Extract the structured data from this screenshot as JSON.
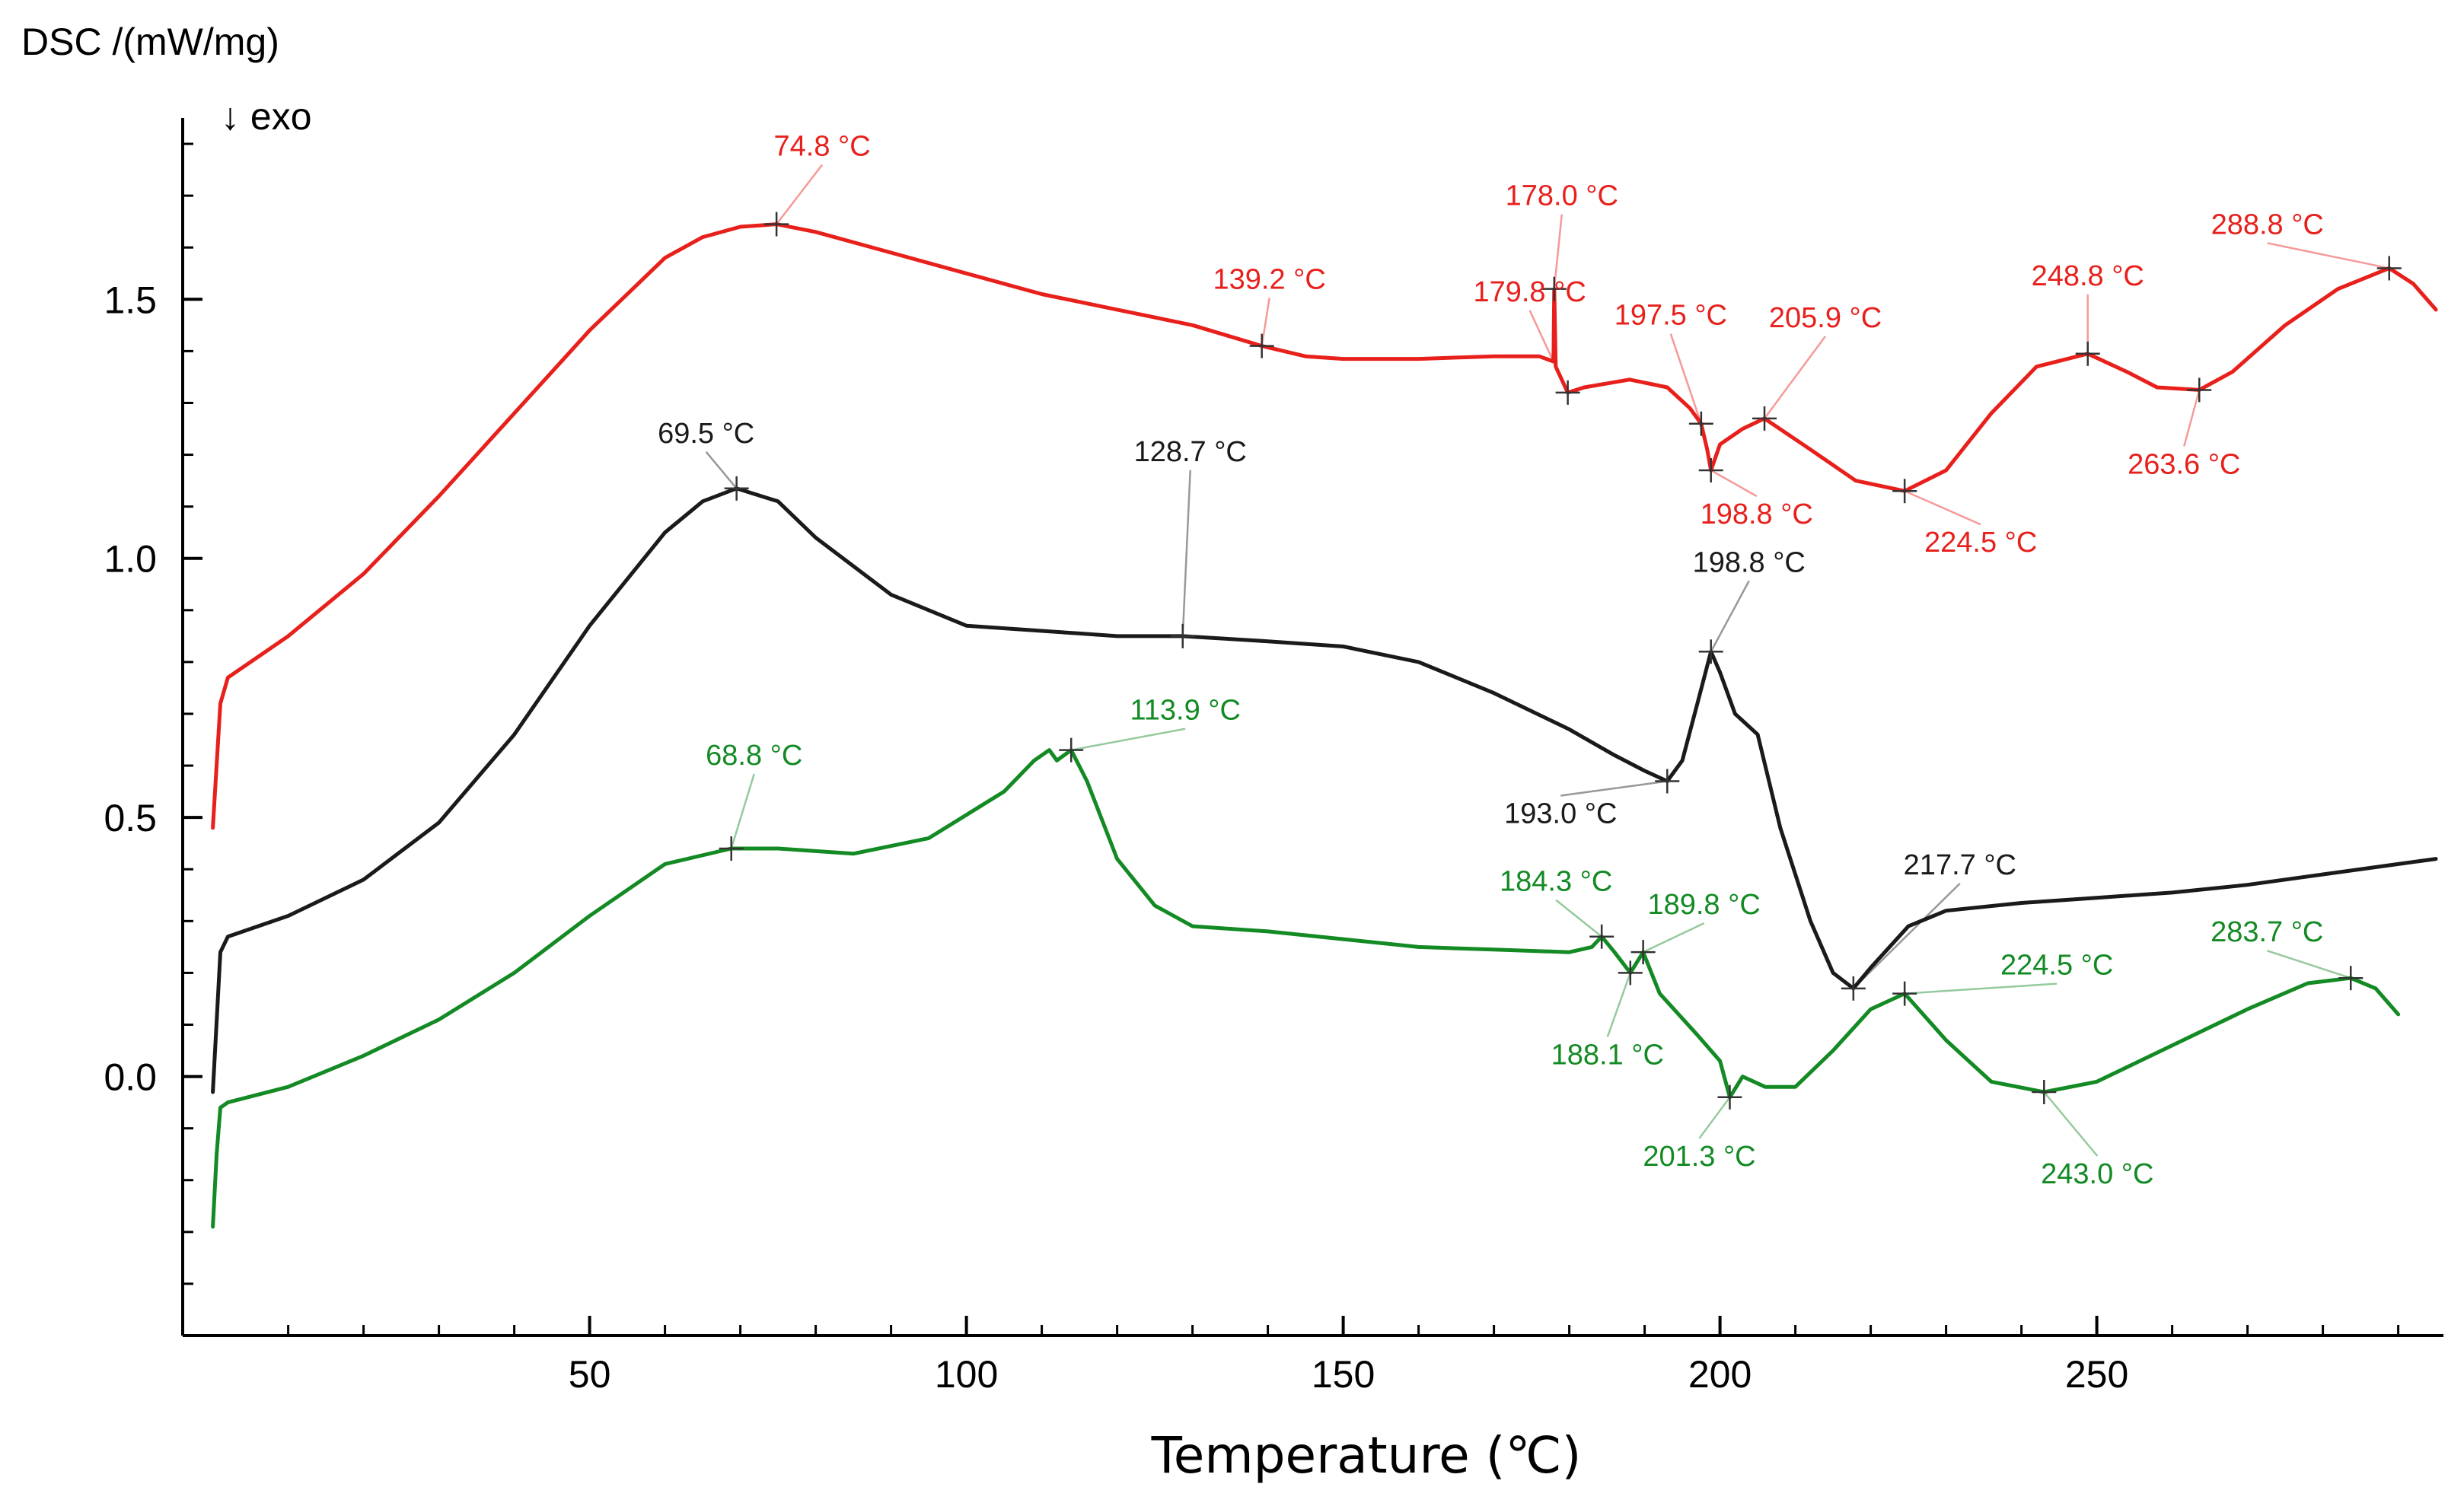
{
  "chart_data": {
    "type": "line",
    "title": "",
    "xlabel": "Temperature (℃)",
    "ylabel": "DSC /(mW/mg)",
    "y_note": "↓ exo",
    "xlim": [
      -4,
      296
    ],
    "ylim": [
      -0.5,
      1.85
    ],
    "x_ticks": [
      50,
      100,
      150,
      200,
      250
    ],
    "x_tick_labels": [
      "50",
      "100",
      "150",
      "200",
      "250"
    ],
    "y_ticks": [
      0.0,
      0.5,
      1.0,
      1.5
    ],
    "y_tick_labels": [
      "0.0",
      "0.5",
      "1.0",
      "1.5"
    ],
    "grid": false,
    "legend": "none",
    "series": [
      {
        "color": "#e8201c",
        "x": [
          0,
          1,
          2,
          10,
          20,
          30,
          40,
          50,
          60,
          65,
          70,
          74.8,
          80,
          90,
          100,
          110,
          120,
          130,
          139.2,
          145,
          150,
          160,
          170,
          176,
          177.9,
          178.0,
          178.2,
          179.8,
          182,
          188,
          193,
          196,
          197.5,
          198.3,
          198.8,
          200,
          203,
          205.9,
          212,
          218,
          224.5,
          230,
          236,
          242,
          248.8,
          254,
          258,
          263.6,
          268,
          275,
          282,
          288.8,
          292,
          295
        ],
        "y": [
          0.48,
          0.72,
          0.77,
          0.85,
          0.97,
          1.12,
          1.28,
          1.44,
          1.58,
          1.62,
          1.64,
          1.645,
          1.63,
          1.59,
          1.55,
          1.51,
          1.48,
          1.45,
          1.41,
          1.39,
          1.385,
          1.385,
          1.39,
          1.39,
          1.38,
          1.52,
          1.37,
          1.32,
          1.33,
          1.345,
          1.33,
          1.29,
          1.26,
          1.21,
          1.17,
          1.22,
          1.25,
          1.27,
          1.21,
          1.15,
          1.13,
          1.17,
          1.28,
          1.37,
          1.395,
          1.36,
          1.33,
          1.325,
          1.36,
          1.45,
          1.52,
          1.56,
          1.53,
          1.48
        ]
      },
      {
        "color": "#1a1a1a",
        "x": [
          0,
          1,
          2,
          10,
          20,
          30,
          40,
          50,
          60,
          65,
          69.5,
          75,
          80,
          90,
          100,
          110,
          115,
          120,
          128.7,
          140,
          150,
          160,
          170,
          180,
          186,
          190,
          193.0,
          195,
          197,
          198.8,
          200,
          202,
          205,
          208,
          212,
          215,
          217.7,
          220,
          225,
          230,
          240,
          250,
          260,
          270,
          280,
          290,
          295
        ],
        "y": [
          -0.03,
          0.24,
          0.27,
          0.31,
          0.38,
          0.49,
          0.66,
          0.87,
          1.05,
          1.11,
          1.135,
          1.11,
          1.04,
          0.93,
          0.87,
          0.86,
          0.855,
          0.85,
          0.85,
          0.84,
          0.83,
          0.8,
          0.74,
          0.67,
          0.62,
          0.59,
          0.57,
          0.61,
          0.72,
          0.82,
          0.78,
          0.7,
          0.66,
          0.48,
          0.3,
          0.2,
          0.17,
          0.21,
          0.29,
          0.32,
          0.335,
          0.345,
          0.355,
          0.37,
          0.39,
          0.41,
          0.42
        ]
      },
      {
        "color": "#138a24",
        "x": [
          0,
          0.5,
          1,
          2,
          10,
          20,
          30,
          40,
          50,
          60,
          68.8,
          75,
          85,
          95,
          105,
          109,
          111,
          112,
          113.9,
          116,
          120,
          125,
          130,
          140,
          150,
          160,
          170,
          180,
          183,
          184.3,
          186,
          188.1,
          189.8,
          192,
          197,
          200,
          201.3,
          203,
          206,
          210,
          215,
          220,
          224.5,
          230,
          236,
          243.0,
          250,
          260,
          270,
          278,
          283.7,
          287,
          290
        ],
        "y": [
          -0.29,
          -0.15,
          -0.06,
          -0.05,
          -0.02,
          0.04,
          0.11,
          0.2,
          0.31,
          0.41,
          0.44,
          0.44,
          0.43,
          0.46,
          0.55,
          0.61,
          0.63,
          0.61,
          0.63,
          0.57,
          0.42,
          0.33,
          0.29,
          0.28,
          0.265,
          0.25,
          0.245,
          0.24,
          0.25,
          0.27,
          0.24,
          0.2,
          0.24,
          0.16,
          0.08,
          0.03,
          -0.04,
          0.0,
          -0.02,
          -0.02,
          0.05,
          0.13,
          0.16,
          0.07,
          -0.01,
          -0.03,
          -0.01,
          0.06,
          0.13,
          0.18,
          0.19,
          0.17,
          0.12
        ]
      }
    ],
    "annotations": [
      {
        "text": "74.8 °C",
        "x": 74.8,
        "y": 1.645,
        "color": "#e8201c"
      },
      {
        "text": "139.2 °C",
        "x": 139.2,
        "y": 1.41,
        "color": "#e8201c"
      },
      {
        "text": "178.0 °C",
        "x": 178.0,
        "y": 1.52,
        "color": "#e8201c"
      },
      {
        "text": "179.8 °C",
        "x": 179.8,
        "y": 1.32,
        "color": "#e8201c"
      },
      {
        "text": "197.5 °C",
        "x": 197.5,
        "y": 1.26,
        "color": "#e8201c"
      },
      {
        "text": "205.9 °C",
        "x": 205.9,
        "y": 1.27,
        "color": "#e8201c"
      },
      {
        "text": "198.8 °C",
        "x": 198.8,
        "y": 1.17,
        "color": "#e8201c"
      },
      {
        "text": "224.5 °C",
        "x": 224.5,
        "y": 1.13,
        "color": "#e8201c"
      },
      {
        "text": "248.8 °C",
        "x": 248.8,
        "y": 1.395,
        "color": "#e8201c"
      },
      {
        "text": "263.6 °C",
        "x": 263.6,
        "y": 1.325,
        "color": "#e8201c"
      },
      {
        "text": "288.8 °C",
        "x": 288.8,
        "y": 1.56,
        "color": "#e8201c"
      },
      {
        "text": "69.5 °C",
        "x": 69.5,
        "y": 1.135,
        "color": "#1a1a1a"
      },
      {
        "text": "128.7 °C",
        "x": 128.7,
        "y": 0.85,
        "color": "#1a1a1a"
      },
      {
        "text": "198.8 °C",
        "x": 198.8,
        "y": 0.82,
        "color": "#1a1a1a"
      },
      {
        "text": "193.0 °C",
        "x": 193.0,
        "y": 0.57,
        "color": "#1a1a1a"
      },
      {
        "text": "217.7 °C",
        "x": 217.7,
        "y": 0.17,
        "color": "#1a1a1a"
      },
      {
        "text": "68.8 °C",
        "x": 68.8,
        "y": 0.44,
        "color": "#138a24"
      },
      {
        "text": "113.9 °C",
        "x": 113.9,
        "y": 0.63,
        "color": "#138a24"
      },
      {
        "text": "184.3 °C",
        "x": 184.3,
        "y": 0.27,
        "color": "#138a24"
      },
      {
        "text": "189.8 °C",
        "x": 189.8,
        "y": 0.24,
        "color": "#138a24"
      },
      {
        "text": "188.1 °C",
        "x": 188.1,
        "y": 0.2,
        "color": "#138a24"
      },
      {
        "text": "201.3 °C",
        "x": 201.3,
        "y": -0.04,
        "color": "#138a24"
      },
      {
        "text": "224.5 °C",
        "x": 224.5,
        "y": 0.16,
        "color": "#138a24"
      },
      {
        "text": "243.0 °C",
        "x": 243.0,
        "y": -0.03,
        "color": "#138a24"
      },
      {
        "text": "283.7 °C",
        "x": 283.7,
        "y": 0.19,
        "color": "#138a24"
      }
    ]
  }
}
